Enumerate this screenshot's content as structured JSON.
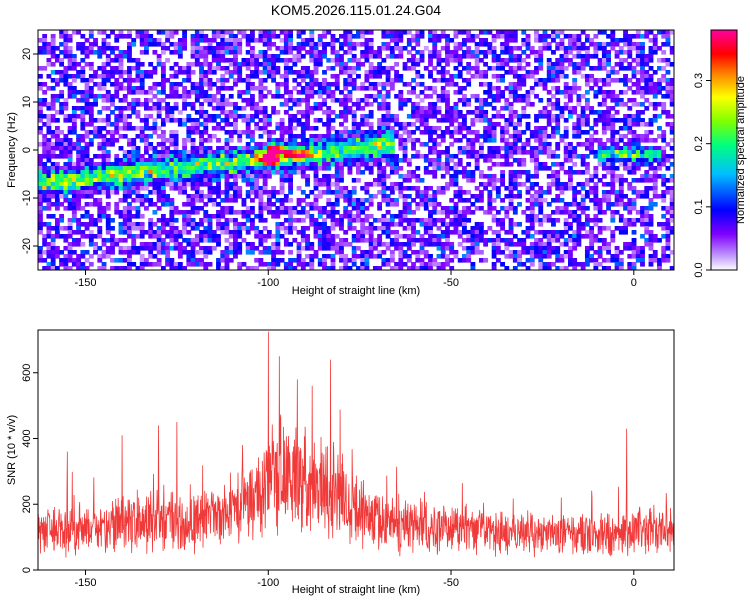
{
  "title": "KOM5.2026.115.01.24.G04",
  "colors": {
    "snr_line": "#f03a3a",
    "axis": "#000000",
    "background": "#ffffff"
  },
  "chart_data": [
    {
      "type": "heatmap",
      "name": "spectrogram",
      "xlabel": "Height of straight line (km)",
      "ylabel": "Frequency (Hz)",
      "xlim": [
        -163,
        11
      ],
      "ylim": [
        -25,
        25
      ],
      "xticks": [
        -150,
        -100,
        -50,
        0
      ],
      "yticks": [
        -20,
        -10,
        0,
        10,
        20
      ],
      "colorbar": {
        "label": "Normalized spectral amplitude",
        "range": [
          0.0,
          0.38
        ],
        "ticks": [
          0.0,
          0.1,
          0.2,
          0.3
        ],
        "colormap": [
          "#ffffff",
          "#7f00ff",
          "#0000ff",
          "#00bfff",
          "#00ff7f",
          "#7fff00",
          "#ffff00",
          "#ff7f00",
          "#ff0000",
          "#ff00a0"
        ]
      },
      "features": [
        {
          "label": "primary ridge",
          "x_start": -163,
          "x_end": -65,
          "freq_start": -7,
          "freq_end": 1
        },
        {
          "label": "peak",
          "x": -100,
          "freq": -2,
          "value": 0.37
        },
        {
          "label": "peak",
          "x": -98,
          "freq": 0,
          "value": 0.33
        },
        {
          "label": "peak",
          "x": -92,
          "freq": -1,
          "value": 0.3
        },
        {
          "label": "secondary ridge",
          "x_start": -10,
          "x_end": 8,
          "freq": -1
        }
      ]
    },
    {
      "type": "line",
      "name": "snr",
      "xlabel": "Height of straight line (km)",
      "ylabel": "SNR (10 * v/v)",
      "xlim": [
        -163,
        11
      ],
      "ylim": [
        0,
        730
      ],
      "xticks": [
        -150,
        -100,
        -50,
        0
      ],
      "yticks": [
        0,
        200,
        400,
        600
      ],
      "series": [
        {
          "name": "SNR",
          "color": "#f03a3a",
          "envelope": {
            "x": [
              -163,
              -150,
              -140,
              -130,
              -120,
              -110,
              -105,
              -100,
              -95,
              -90,
              -85,
              -80,
              -75,
              -70,
              -60,
              -50,
              -40,
              -30,
              -20,
              -10,
              0,
              5,
              10
            ],
            "mean": [
              120,
              130,
              140,
              150,
              145,
              165,
              190,
              260,
              300,
              280,
              250,
              220,
              170,
              150,
              130,
              120,
              115,
              110,
              110,
              105,
              115,
              120,
              115
            ],
            "spread": [
              70,
              80,
              90,
              100,
              90,
              100,
              120,
              170,
              180,
              170,
              160,
              140,
              110,
              90,
              80,
              70,
              70,
              65,
              65,
              65,
              70,
              75,
              70
            ]
          },
          "spikes": [
            {
              "x": -100,
              "y": 725
            },
            {
              "x": -97,
              "y": 650
            },
            {
              "x": -83,
              "y": 640
            },
            {
              "x": -92,
              "y": 580
            },
            {
              "x": -88,
              "y": 560
            },
            {
              "x": -130,
              "y": 440
            },
            {
              "x": -125,
              "y": 450
            },
            {
              "x": -107,
              "y": 380
            },
            {
              "x": -2,
              "y": 430
            },
            {
              "x": -155,
              "y": 360
            },
            {
              "x": -140,
              "y": 410
            }
          ]
        }
      ]
    }
  ]
}
